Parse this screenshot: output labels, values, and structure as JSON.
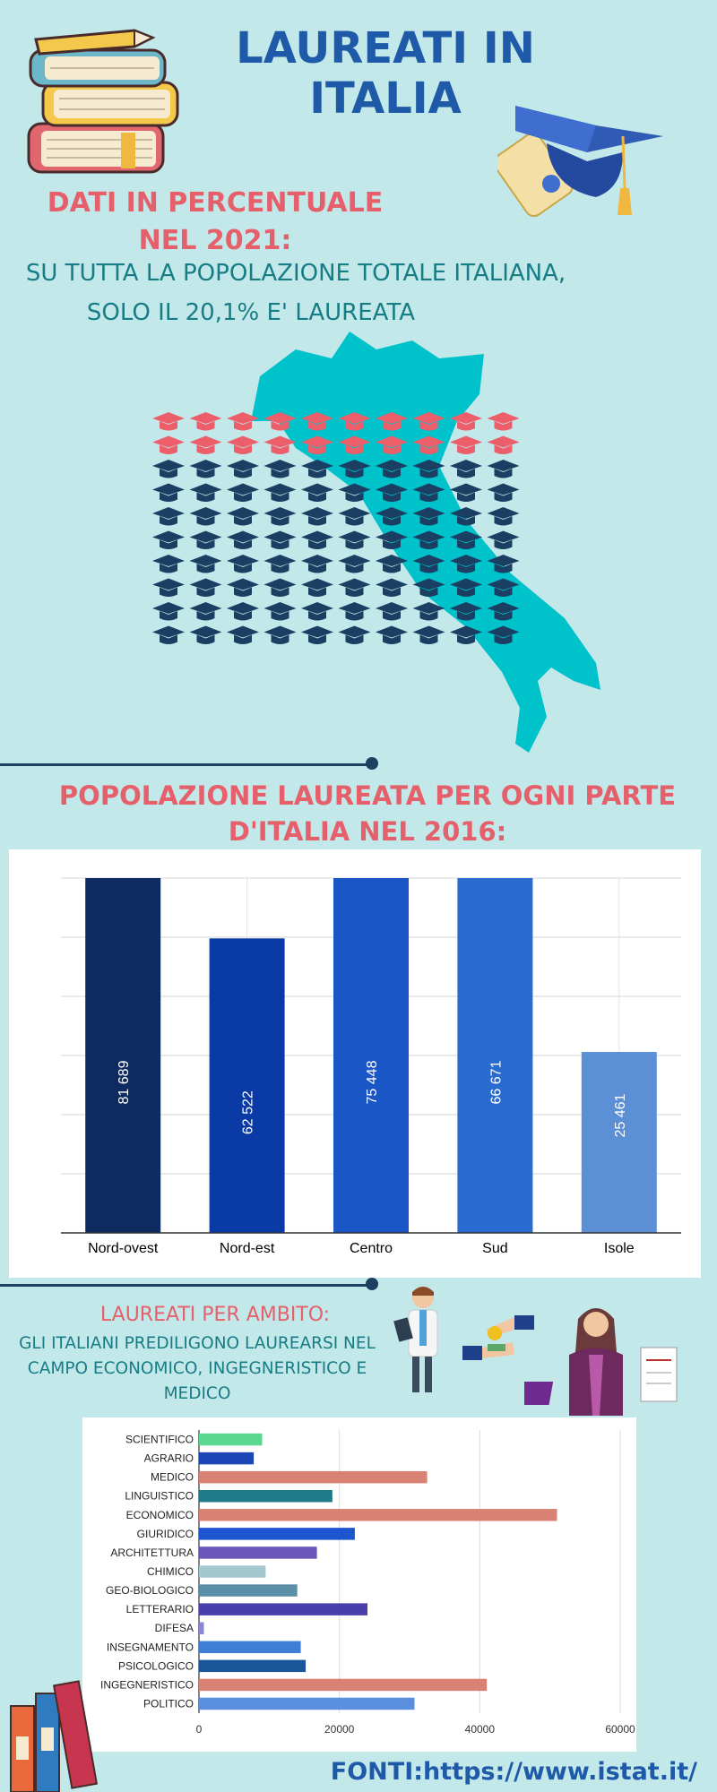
{
  "header": {
    "title": "LAUREATI IN ITALIA"
  },
  "section1": {
    "heading_line1": "DATI IN PERCENTUALE",
    "heading_line2": "NEL 2021:",
    "text_line1": "SU TUTTA LA POPOLAZIONE TOTALE ITALIANA,",
    "text_line2": "SOLO IL 20,1% E' LAUREATA",
    "graduate_share_pct": 20,
    "colors": {
      "graduated": "#ec5f6a",
      "not_graduated": "#1b3f63",
      "map": "#00c2cb"
    }
  },
  "section2": {
    "heading_line1": "POPOLAZIONE LAUREATA PER OGNI PARTE",
    "heading_line2": "D'ITALIA NEL 2016:"
  },
  "section3": {
    "heading": "LAUREATI PER AMBITO:",
    "text_line1": "GLI ITALIANI PREDILIGONO LAUREARSI NEL",
    "text_line2": "CAMPO ECONOMICO, INGEGNERISTICO E",
    "text_line3": "MEDICO"
  },
  "footer": {
    "source": "FONTI:https://www.istat.it/"
  },
  "chart_data": [
    {
      "type": "bar",
      "categories": [
        "Nord-ovest",
        "Nord-est",
        "Centro",
        "Sud",
        "Isole"
      ],
      "values": [
        81689,
        62522,
        75448,
        66671,
        25461
      ],
      "value_labels": [
        "81 689",
        "62 522",
        "75 448",
        "66 671",
        "25 461"
      ],
      "bar_fill_fraction": [
        1.0,
        0.83,
        1.0,
        1.0,
        0.51
      ],
      "colors": [
        "#0d2b60",
        "#0a3aa6",
        "#1a56c5",
        "#2a6bcf",
        "#5b8fd6"
      ],
      "grid": true
    },
    {
      "type": "bar",
      "orientation": "horizontal",
      "categories": [
        "SCIENTIFICO",
        "AGRARIO",
        "MEDICO",
        "LINGUISTICO",
        "ECONOMICO",
        "GIURIDICO",
        "ARCHITETTURA",
        "CHIMICO",
        "GEO-BIOLOGICO",
        "LETTERARIO",
        "DIFESA",
        "INSEGNAMENTO",
        "PSICOLOGICO",
        "INGEGNERISTICO",
        "POLITICO"
      ],
      "values": [
        9000,
        7800,
        32500,
        19000,
        51000,
        22200,
        16800,
        9500,
        14000,
        24000,
        700,
        14500,
        15200,
        41000,
        30700
      ],
      "colors": [
        "#5bd890",
        "#1c45b5",
        "#d98172",
        "#1e7a86",
        "#d98172",
        "#1c55cf",
        "#6a55b8",
        "#a3c8cf",
        "#5b8fa8",
        "#4a3faa",
        "#8a86d8",
        "#3e7fd6",
        "#1a5599",
        "#d98172",
        "#5a8fe0"
      ],
      "xlim": [
        0,
        60000
      ],
      "xticks": [
        "0",
        "20000",
        "40000",
        "60000"
      ],
      "grid": true
    }
  ]
}
